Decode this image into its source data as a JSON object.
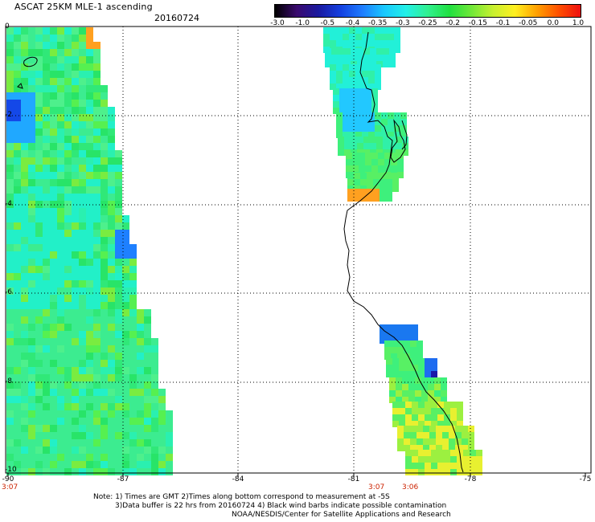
{
  "header": {
    "title": "ASCAT 25KM MLE-1 ascending",
    "date": "20160724"
  },
  "colorbar": {
    "labels": [
      "-3.0",
      "-1.0",
      "-0.5",
      "-0.4",
      "-0.35",
      "-0.3",
      "-0.25",
      "-0.2",
      "-0.15",
      "-0.1",
      "-0.05",
      "0.0",
      "1.0"
    ],
    "colors": [
      "#000000",
      "#3a0a6e",
      "#1a1aa0",
      "#1440e0",
      "#1e7cff",
      "#19c8ff",
      "#22f0e8",
      "#30f090",
      "#20e040",
      "#70e838",
      "#c8f030",
      "#fff020",
      "#ffa000",
      "#ff5000",
      "#ee1010"
    ]
  },
  "axes": {
    "y_labels": [
      "0",
      "-2",
      "-4",
      "-6",
      "-8",
      "-10"
    ],
    "x_labels": [
      "-90",
      "-87",
      "-84",
      "-81",
      "-78",
      "-75"
    ],
    "times": {
      "left": "3:07",
      "mid_a": "3:07",
      "mid_b": "3:06"
    }
  },
  "footer": {
    "line1": "Note: 1) Times are GMT 2)Times along bottom correspond to measurement at -5S",
    "line2": "3)Data buffer is 22 hrs from 20160724 4) Black wind barbs indicate possible contamination",
    "line3": "NOAA/NESDIS/Center for Satellite Applications and Research"
  },
  "swaths": {
    "left_palette": [
      "#30e878",
      "#3cec90",
      "#28e468",
      "#4ef08c",
      "#22f0c8",
      "#2af0b0",
      "#56f050",
      "#7aec40"
    ],
    "right_palette": [
      "#22f0d8",
      "#30f0a8",
      "#3ef07c",
      "#58f064",
      "#9cf040",
      "#e8f030",
      "#ffdc20",
      "#ff9a18"
    ]
  }
}
